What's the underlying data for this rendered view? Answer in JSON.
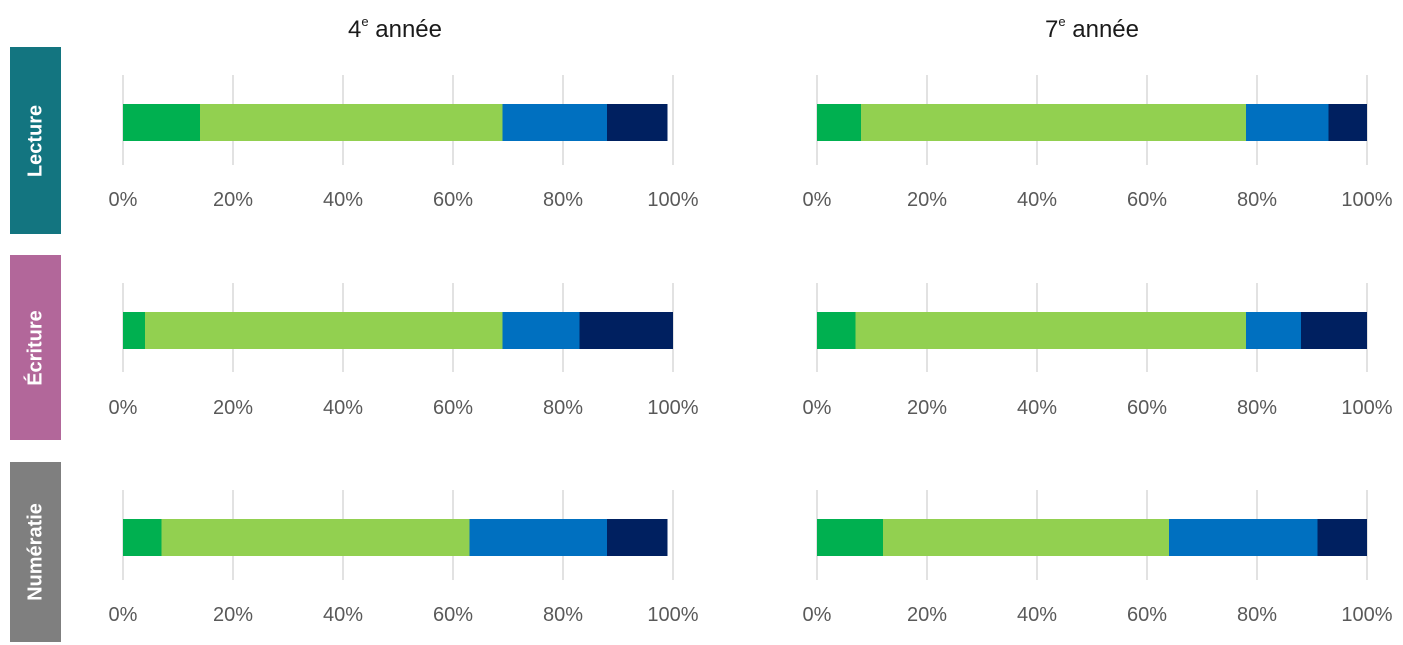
{
  "columns": [
    {
      "title_main": "4",
      "title_sup": "e",
      "title_rest": " année"
    },
    {
      "title_main": "7",
      "title_sup": "e",
      "title_rest": " année"
    }
  ],
  "rows": [
    {
      "label": "Lecture",
      "color": "#137580"
    },
    {
      "label": "Écriture",
      "color": "#B2679A"
    },
    {
      "label": "Numératie",
      "color": "#7F7F7F"
    }
  ],
  "segment_colors": [
    "#00B050",
    "#92D050",
    "#0070C0",
    "#002060"
  ],
  "chart_data": {
    "type": "bar",
    "stacked": true,
    "orientation": "horizontal",
    "tick_labels": [
      "0%",
      "20%",
      "40%",
      "60%",
      "80%",
      "100%"
    ],
    "xlim": [
      0,
      100
    ],
    "grid": true,
    "panels": [
      {
        "row": "Lecture",
        "column": "4e année",
        "values": [
          14,
          55,
          19,
          11
        ]
      },
      {
        "row": "Lecture",
        "column": "7e année",
        "values": [
          8,
          70,
          15,
          7
        ]
      },
      {
        "row": "Écriture",
        "column": "4e année",
        "values": [
          4,
          65,
          14,
          17
        ]
      },
      {
        "row": "Écriture",
        "column": "7e année",
        "values": [
          7,
          71,
          10,
          12
        ]
      },
      {
        "row": "Numératie",
        "column": "4e année",
        "values": [
          7,
          56,
          25,
          11
        ]
      },
      {
        "row": "Numératie",
        "column": "7e année",
        "values": [
          12,
          52,
          27,
          9
        ]
      }
    ]
  }
}
